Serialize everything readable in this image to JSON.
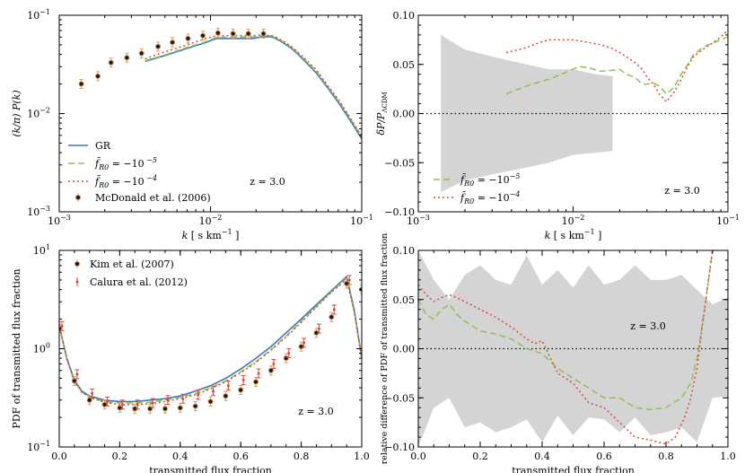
{
  "chart_data": [
    {
      "type": "line",
      "panel": "top-left",
      "xscale": "log",
      "yscale": "log",
      "xlim": [
        0.001,
        0.1
      ],
      "ylim": [
        0.001,
        0.1
      ],
      "xlabel": "k [ s km⁻¹ ]",
      "ylabel": "(k/π) P(k)",
      "annotation": "z = 3.0",
      "legend_position": "lower-left",
      "xticks": [
        {
          "v": 0.001,
          "base": "10",
          "exp": "−3"
        },
        {
          "v": 0.01,
          "base": "10",
          "exp": "−2"
        },
        {
          "v": 0.1,
          "base": "10",
          "exp": "−1"
        }
      ],
      "yticks": [
        {
          "v": 0.001,
          "base": "10",
          "exp": "−3"
        },
        {
          "v": 0.01,
          "base": "10",
          "exp": "−2"
        },
        {
          "v": 0.1,
          "base": "10",
          "exp": "−1"
        }
      ],
      "series": [
        {
          "name": "GR",
          "legend": "GR",
          "style": "solid",
          "color": "#3a78b8",
          "x": [
            0.0037,
            0.005,
            0.007,
            0.009,
            0.011,
            0.013,
            0.016,
            0.019,
            0.022,
            0.025,
            0.027,
            0.03,
            0.035,
            0.04,
            0.05,
            0.06,
            0.07,
            0.08,
            0.09,
            0.1
          ],
          "y": [
            0.034,
            0.039,
            0.046,
            0.052,
            0.058,
            0.058,
            0.058,
            0.058,
            0.0605,
            0.0605,
            0.058,
            0.053,
            0.045,
            0.037,
            0.026,
            0.018,
            0.013,
            0.0095,
            0.0072,
            0.0055
          ]
        },
        {
          "name": "f_R0 = -1e-5",
          "legend_base": "f̄",
          "legend_sub": "R0",
          "legend_text": " = −10",
          "legend_exp": " −5",
          "style": "dashed",
          "color": "#8cc152",
          "x": [
            0.0037,
            0.005,
            0.007,
            0.009,
            0.011,
            0.013,
            0.016,
            0.019,
            0.022,
            0.025,
            0.027,
            0.03,
            0.035,
            0.04,
            0.05,
            0.06,
            0.07,
            0.08,
            0.09,
            0.1
          ],
          "y": [
            0.0345,
            0.0395,
            0.047,
            0.053,
            0.0595,
            0.06,
            0.06,
            0.06,
            0.062,
            0.062,
            0.059,
            0.054,
            0.046,
            0.038,
            0.027,
            0.0185,
            0.0135,
            0.01,
            0.0075,
            0.0058
          ]
        },
        {
          "name": "f_R0 = -1e-4",
          "legend_base": "f̄",
          "legend_sub": "R0",
          "legend_text": " = −10",
          "legend_exp": " −4",
          "style": "dotted",
          "color": "#d8493a",
          "x": [
            0.0037,
            0.005,
            0.007,
            0.009,
            0.011,
            0.013,
            0.016,
            0.019,
            0.022,
            0.025,
            0.027,
            0.03,
            0.035,
            0.04,
            0.05,
            0.06,
            0.07,
            0.08,
            0.09,
            0.1
          ],
          "y": [
            0.036,
            0.0425,
            0.05,
            0.057,
            0.062,
            0.062,
            0.062,
            0.062,
            0.063,
            0.0625,
            0.06,
            0.055,
            0.047,
            0.039,
            0.028,
            0.019,
            0.014,
            0.0102,
            0.0076,
            0.0059
          ]
        },
        {
          "name": "McDonald et al. (2006)",
          "legend": "McDonald et al. (2006)",
          "style": "points",
          "x": [
            0.0014,
            0.0018,
            0.0022,
            0.0028,
            0.0035,
            0.0045,
            0.0056,
            0.0071,
            0.0089,
            0.0112,
            0.0141,
            0.0178,
            0.0224
          ],
          "y": [
            0.02,
            0.024,
            0.033,
            0.037,
            0.041,
            0.048,
            0.053,
            0.058,
            0.062,
            0.066,
            0.065,
            0.065,
            0.065
          ]
        }
      ]
    },
    {
      "type": "line",
      "panel": "top-right",
      "xscale": "log",
      "yscale": "linear",
      "xlim": [
        0.001,
        0.1
      ],
      "ylim": [
        -0.1,
        0.1
      ],
      "xlabel": "k [ s km⁻¹ ]",
      "ylabel_main": "δP/P",
      "ylabel_sub": "ΛCDM",
      "annotation": "z = 3.0",
      "legend_position": "lower-left",
      "xticks": [
        {
          "v": 0.001,
          "base": "10",
          "exp": "−3"
        },
        {
          "v": 0.01,
          "base": "10",
          "exp": "−2"
        },
        {
          "v": 0.1,
          "base": "10",
          "exp": "−1"
        }
      ],
      "yticks": [
        {
          "v": -0.1,
          "label": "−0.10"
        },
        {
          "v": -0.05,
          "label": "−0.05"
        },
        {
          "v": 0,
          "label": "0.00"
        },
        {
          "v": 0.05,
          "label": "0.05"
        },
        {
          "v": 0.1,
          "label": "0.10"
        }
      ],
      "band": {
        "x": [
          0.0014,
          0.002,
          0.003,
          0.005,
          0.007,
          0.01,
          0.014,
          0.018
        ],
        "upper": [
          0.08,
          0.065,
          0.058,
          0.05,
          0.045,
          0.045,
          0.04,
          0.038
        ],
        "lower": [
          -0.08,
          -0.068,
          -0.062,
          -0.055,
          -0.05,
          -0.042,
          -0.04,
          -0.038
        ]
      },
      "series": [
        {
          "name": "f_R0 = -1e-5",
          "legend_base": "f̄",
          "legend_sub": "R0",
          "legend_text": " = −10",
          "legend_exp": "−5",
          "style": "dashed",
          "color": "#8cc152",
          "x": [
            0.0037,
            0.005,
            0.007,
            0.009,
            0.011,
            0.013,
            0.015,
            0.018,
            0.02,
            0.022,
            0.025,
            0.028,
            0.03,
            0.033,
            0.036,
            0.04,
            0.045,
            0.05,
            0.055,
            0.06,
            0.07,
            0.08,
            0.09,
            0.1
          ],
          "y": [
            0.02,
            0.028,
            0.035,
            0.042,
            0.048,
            0.046,
            0.043,
            0.044,
            0.045,
            0.04,
            0.037,
            0.03,
            0.03,
            0.031,
            0.028,
            0.02,
            0.027,
            0.04,
            0.05,
            0.06,
            0.068,
            0.072,
            0.075,
            0.078
          ]
        },
        {
          "name": "f_R0 = -1e-4",
          "legend_base": "f̄",
          "legend_sub": "R0",
          "legend_text": " = −10",
          "legend_exp": "−4",
          "style": "dotted",
          "color": "#d8493a",
          "x": [
            0.0037,
            0.005,
            0.006,
            0.007,
            0.008,
            0.01,
            0.012,
            0.015,
            0.018,
            0.02,
            0.022,
            0.025,
            0.028,
            0.03,
            0.033,
            0.036,
            0.04,
            0.045,
            0.05,
            0.055,
            0.06,
            0.07,
            0.08,
            0.09,
            0.1
          ],
          "y": [
            0.062,
            0.067,
            0.072,
            0.075,
            0.075,
            0.075,
            0.073,
            0.07,
            0.066,
            0.062,
            0.058,
            0.052,
            0.045,
            0.037,
            0.03,
            0.02,
            0.012,
            0.022,
            0.035,
            0.048,
            0.058,
            0.066,
            0.072,
            0.078,
            0.085
          ]
        }
      ]
    },
    {
      "type": "line",
      "panel": "bottom-left",
      "xscale": "linear",
      "yscale": "log",
      "xlim": [
        0,
        1
      ],
      "ylim": [
        0.1,
        10
      ],
      "xlabel": "transmitted flux fraction",
      "ylabel": "PDF of transmitted flux fraction",
      "annotation": "z = 3.0",
      "legend_position": "upper-left",
      "xticks": [
        {
          "v": 0,
          "label": "0.0"
        },
        {
          "v": 0.2,
          "label": "0.2"
        },
        {
          "v": 0.4,
          "label": "0.4"
        },
        {
          "v": 0.6,
          "label": "0.6"
        },
        {
          "v": 0.8,
          "label": "0.8"
        },
        {
          "v": 1,
          "label": "1.0"
        }
      ],
      "yticks": [
        {
          "v": 0.1,
          "base": "10",
          "exp": "−1"
        },
        {
          "v": 1,
          "base": "10",
          "exp": "0"
        },
        {
          "v": 10,
          "base": "10",
          "exp": "1"
        }
      ],
      "series": [
        {
          "name": "GR",
          "style": "solid",
          "color": "#3a78b8",
          "x": [
            0,
            0.025,
            0.05,
            0.075,
            0.1,
            0.15,
            0.2,
            0.25,
            0.3,
            0.35,
            0.4,
            0.45,
            0.5,
            0.55,
            0.6,
            0.65,
            0.7,
            0.75,
            0.8,
            0.85,
            0.9,
            0.95,
            0.975,
            1.0
          ],
          "y": [
            1.7,
            0.8,
            0.48,
            0.37,
            0.33,
            0.3,
            0.29,
            0.29,
            0.3,
            0.31,
            0.33,
            0.37,
            0.42,
            0.5,
            0.62,
            0.8,
            1.05,
            1.45,
            2.0,
            2.8,
            3.9,
            5.4,
            2.5,
            0.8
          ]
        },
        {
          "name": "f_R0 = -1e-5",
          "style": "dashed",
          "color": "#8cc152",
          "x": [
            0,
            0.025,
            0.05,
            0.075,
            0.1,
            0.15,
            0.2,
            0.25,
            0.3,
            0.35,
            0.4,
            0.45,
            0.5,
            0.55,
            0.6,
            0.65,
            0.7,
            0.75,
            0.8,
            0.85,
            0.9,
            0.95,
            0.975,
            1.0
          ],
          "y": [
            1.75,
            0.78,
            0.46,
            0.36,
            0.32,
            0.29,
            0.28,
            0.28,
            0.285,
            0.3,
            0.32,
            0.35,
            0.4,
            0.47,
            0.58,
            0.74,
            0.98,
            1.35,
            1.9,
            2.7,
            3.8,
            5.2,
            2.4,
            0.8
          ]
        },
        {
          "name": "f_R0 = -1e-4",
          "style": "dotted",
          "color": "#d8493a",
          "x": [
            0,
            0.025,
            0.05,
            0.075,
            0.1,
            0.15,
            0.2,
            0.25,
            0.3,
            0.35,
            0.4,
            0.45,
            0.5,
            0.55,
            0.6,
            0.65,
            0.7,
            0.75,
            0.8,
            0.85,
            0.9,
            0.95,
            0.975,
            1.0
          ],
          "y": [
            1.8,
            0.79,
            0.47,
            0.36,
            0.32,
            0.285,
            0.27,
            0.27,
            0.275,
            0.29,
            0.31,
            0.34,
            0.39,
            0.46,
            0.57,
            0.72,
            0.96,
            1.32,
            1.85,
            2.65,
            3.75,
            5.1,
            2.4,
            0.8
          ]
        },
        {
          "name": "Kim et al. (2007)",
          "legend": "Kim et al. (2007)",
          "style": "points",
          "x": [
            0,
            0.05,
            0.1,
            0.15,
            0.2,
            0.25,
            0.3,
            0.35,
            0.4,
            0.45,
            0.5,
            0.55,
            0.6,
            0.65,
            0.7,
            0.75,
            0.8,
            0.85,
            0.9,
            0.95,
            1.0
          ],
          "y": [
            1.6,
            0.47,
            0.3,
            0.27,
            0.25,
            0.245,
            0.245,
            0.245,
            0.25,
            0.26,
            0.29,
            0.33,
            0.38,
            0.46,
            0.6,
            0.8,
            1.05,
            1.45,
            2.1,
            4.6,
            4.0
          ]
        },
        {
          "name": "Calura et al. (2012)",
          "legend": "Calura et al. (2012)",
          "style": "crosses",
          "color": "#d8493a",
          "x": [
            0,
            0.05,
            0.1,
            0.15,
            0.2,
            0.25,
            0.3,
            0.35,
            0.4,
            0.45,
            0.5,
            0.55,
            0.6,
            0.65,
            0.7,
            0.75,
            0.8,
            0.85,
            0.9,
            0.95,
            1.0
          ],
          "y": [
            1.7,
            0.55,
            0.35,
            0.29,
            0.27,
            0.27,
            0.28,
            0.3,
            0.31,
            0.34,
            0.37,
            0.42,
            0.48,
            0.56,
            0.7,
            0.9,
            1.15,
            1.6,
            2.5,
            5.0,
            4.5
          ]
        }
      ]
    },
    {
      "type": "line",
      "panel": "bottom-right",
      "xscale": "linear",
      "yscale": "linear",
      "xlim": [
        0,
        1
      ],
      "ylim": [
        -0.1,
        0.1
      ],
      "xlabel": "transmitted flux fraction",
      "ylabel": "relative difference of PDF of transmitted flux fraction",
      "annotation": "z = 3.0",
      "xticks": [
        {
          "v": 0,
          "label": "0.0"
        },
        {
          "v": 0.2,
          "label": "0.2"
        },
        {
          "v": 0.4,
          "label": "0.4"
        },
        {
          "v": 0.6,
          "label": "0.6"
        },
        {
          "v": 0.8,
          "label": "0.8"
        },
        {
          "v": 1,
          "label": "1.0"
        }
      ],
      "yticks": [
        {
          "v": -0.1,
          "label": "−0.10"
        },
        {
          "v": -0.05,
          "label": "−0.05"
        },
        {
          "v": 0,
          "label": "0.00"
        },
        {
          "v": 0.05,
          "label": "0.05"
        },
        {
          "v": 0.1,
          "label": "0.10"
        }
      ],
      "band": {
        "x": [
          0,
          0.05,
          0.1,
          0.15,
          0.2,
          0.25,
          0.3,
          0.35,
          0.4,
          0.45,
          0.5,
          0.55,
          0.6,
          0.65,
          0.7,
          0.75,
          0.8,
          0.85,
          0.9,
          0.95,
          1.0
        ],
        "upper": [
          0.1,
          0.07,
          0.05,
          0.075,
          0.085,
          0.07,
          0.065,
          0.095,
          0.065,
          0.08,
          0.062,
          0.085,
          0.065,
          0.07,
          0.085,
          0.07,
          0.07,
          0.075,
          0.06,
          0.045,
          0.052
        ],
        "lower": [
          -0.1,
          -0.06,
          -0.05,
          -0.08,
          -0.075,
          -0.085,
          -0.08,
          -0.072,
          -0.095,
          -0.068,
          -0.088,
          -0.07,
          -0.072,
          -0.085,
          -0.07,
          -0.088,
          -0.085,
          -0.08,
          -0.095,
          -0.05,
          -0.048
        ]
      },
      "series": [
        {
          "name": "f_R0 = -1e-5",
          "style": "dashed",
          "color": "#8cc152",
          "x": [
            0,
            0.025,
            0.05,
            0.075,
            0.1,
            0.125,
            0.15,
            0.2,
            0.25,
            0.3,
            0.35,
            0.4,
            0.45,
            0.5,
            0.55,
            0.6,
            0.65,
            0.7,
            0.75,
            0.8,
            0.85,
            0.88,
            0.9,
            0.92,
            0.95
          ],
          "y": [
            0.05,
            0.035,
            0.03,
            0.04,
            0.045,
            0.035,
            0.028,
            0.018,
            0.015,
            0.01,
            0.0,
            -0.005,
            -0.02,
            -0.03,
            -0.04,
            -0.05,
            -0.05,
            -0.06,
            -0.062,
            -0.06,
            -0.05,
            -0.035,
            -0.01,
            0.03,
            0.1
          ]
        },
        {
          "name": "f_R0 = -1e-4",
          "style": "dotted",
          "color": "#d8493a",
          "x": [
            0,
            0.025,
            0.05,
            0.075,
            0.1,
            0.125,
            0.15,
            0.2,
            0.25,
            0.3,
            0.35,
            0.375,
            0.4,
            0.45,
            0.5,
            0.55,
            0.6,
            0.65,
            0.7,
            0.75,
            0.8,
            0.83,
            0.86,
            0.88,
            0.9,
            0.92,
            0.95
          ],
          "y": [
            0.065,
            0.055,
            0.048,
            0.052,
            0.055,
            0.052,
            0.048,
            0.04,
            0.032,
            0.022,
            0.01,
            0.005,
            0.008,
            -0.025,
            -0.035,
            -0.055,
            -0.06,
            -0.075,
            -0.09,
            -0.093,
            -0.097,
            -0.09,
            -0.07,
            -0.05,
            -0.02,
            0.03,
            0.1
          ]
        }
      ]
    }
  ]
}
